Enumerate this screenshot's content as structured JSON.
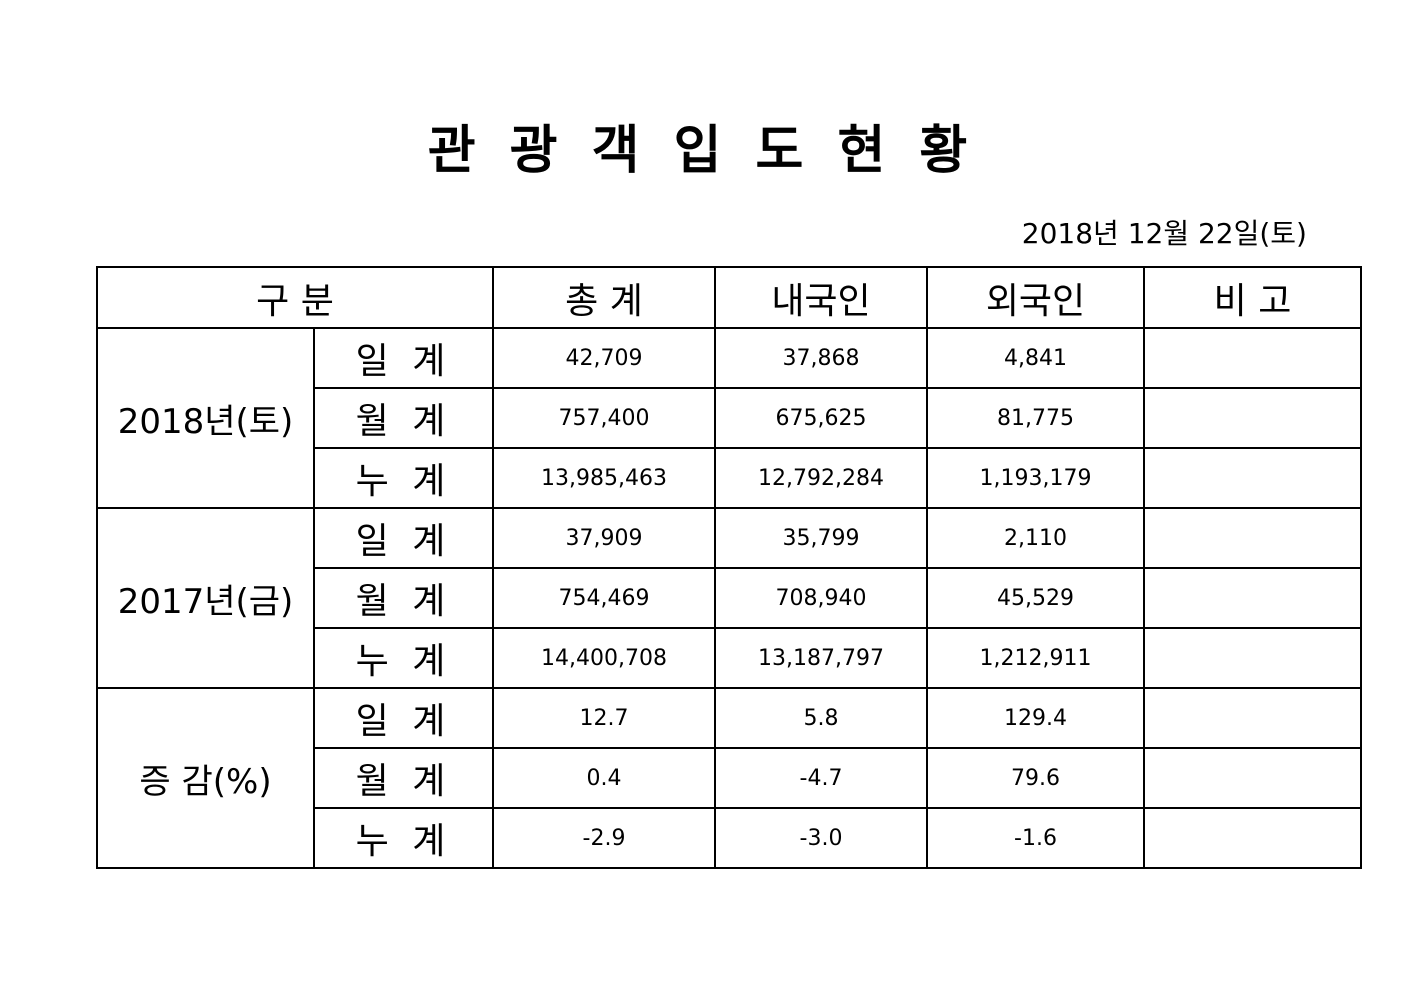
{
  "title": "관 광 객 입 도 현 황",
  "date": "2018년 12월 22일(토)",
  "table": {
    "header": [
      "구 분",
      "총 계",
      "내국인",
      "외국인",
      "비 고"
    ],
    "groups": [
      {
        "label": "2018년(토)",
        "rows": [
          {
            "label": "일 계",
            "values": [
              "42,709",
              "37,868",
              "4,841"
            ]
          },
          {
            "label": "월 계",
            "values": [
              "757,400",
              "675,625",
              "81,775"
            ]
          },
          {
            "label": "누 계",
            "values": [
              "13,985,463",
              "12,792,284",
              "1,193,179"
            ]
          }
        ]
      },
      {
        "label": "2017년(금)",
        "rows": [
          {
            "label": "일 계",
            "values": [
              "37,909",
              "35,799",
              "2,110"
            ]
          },
          {
            "label": "월 계",
            "values": [
              "754,469",
              "708,940",
              "45,529"
            ]
          },
          {
            "label": "누 계",
            "values": [
              "14,400,708",
              "13,187,797",
              "1,212,911"
            ]
          }
        ]
      },
      {
        "label": "증 감(%)",
        "rows": [
          {
            "label": "일 계",
            "values": [
              "12.7",
              "5.8",
              "129.4"
            ]
          },
          {
            "label": "월 계",
            "values": [
              "0.4",
              "-4.7",
              "79.6"
            ]
          },
          {
            "label": "누 계",
            "values": [
              "-2.9",
              "-3.0",
              "-1.6"
            ]
          }
        ]
      }
    ]
  }
}
